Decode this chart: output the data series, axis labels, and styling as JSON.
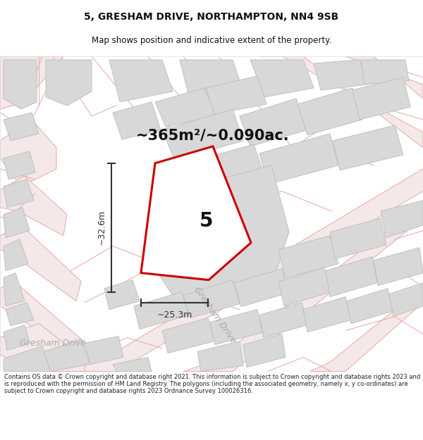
{
  "title_line1": "5, GRESHAM DRIVE, NORTHAMPTON, NN4 9SB",
  "title_line2": "Map shows position and indicative extent of the property.",
  "area_label": "~365m²/~0.090ac.",
  "property_number": "5",
  "dim_width": "~25.3m",
  "dim_height": "~32.6m",
  "street_label_bottom_left": "Gresham Drive",
  "street_label_center": "Gresham Drive",
  "footer_text": "Contains OS data © Crown copyright and database right 2021. This information is subject to Crown copyright and database rights 2023 and is reproduced with the permission of HM Land Registry. The polygons (including the associated geometry, namely x, y co-ordinates) are subject to Crown copyright and database rights 2023 Ordnance Survey 100026316.",
  "bg_color": "#ffffff",
  "map_bg": "#ffffff",
  "road_line_color": "#e8a8a8",
  "road_fill_color": "#f5e8e8",
  "plot_color": "#cc0000",
  "building_color": "#d8d8d8",
  "building_edge": "#c0c0c0",
  "dim_color": "#333333",
  "text_color": "#111111",
  "street_text_color": "#aaaaaa",
  "title_fontsize": 10,
  "subtitle_fontsize": 8.5,
  "area_fontsize": 15,
  "number_fontsize": 20,
  "dim_fontsize": 9,
  "street_fontsize": 9,
  "footer_fontsize": 6.0
}
